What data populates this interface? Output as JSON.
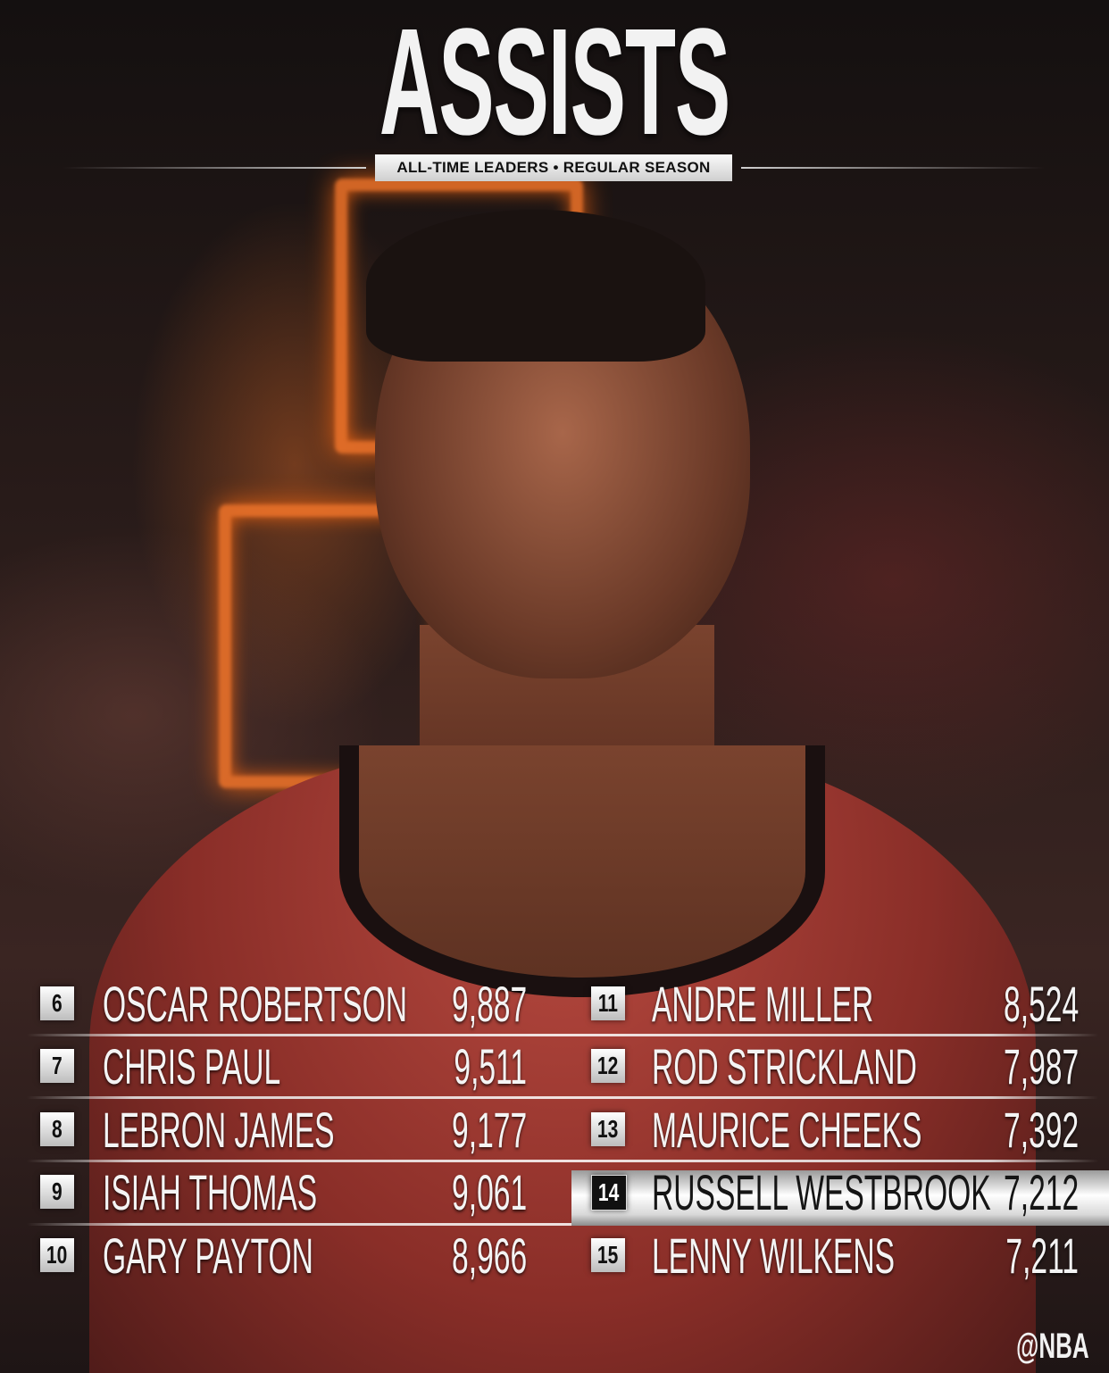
{
  "header": {
    "title": "ASSISTS",
    "subtitle": "ALL-TIME LEADERS • REGULAR SEASON"
  },
  "colors": {
    "highlight": "#e6e6e6",
    "text": "#f4f4f4",
    "rim": "#ff7a2a"
  },
  "left": [
    {
      "rank": "6",
      "name": "OSCAR ROBERTSON",
      "value": "9,887"
    },
    {
      "rank": "7",
      "name": "CHRIS PAUL",
      "value": "9,511"
    },
    {
      "rank": "8",
      "name": "LEBRON JAMES",
      "value": "9,177"
    },
    {
      "rank": "9",
      "name": "ISIAH THOMAS",
      "value": "9,061"
    },
    {
      "rank": "10",
      "name": "GARY PAYTON",
      "value": "8,966"
    }
  ],
  "right": [
    {
      "rank": "11",
      "name": "ANDRE MILLER",
      "value": "8,524"
    },
    {
      "rank": "12",
      "name": "ROD STRICKLAND",
      "value": "7,987"
    },
    {
      "rank": "13",
      "name": "MAURICE CHEEKS",
      "value": "7,392"
    },
    {
      "rank": "14",
      "name": "RUSSELL WESTBROOK",
      "value": "7,212",
      "highlighted": true
    },
    {
      "rank": "15",
      "name": "LENNY WILKENS",
      "value": "7,211"
    }
  ],
  "footer": {
    "handle": "@NBA"
  }
}
